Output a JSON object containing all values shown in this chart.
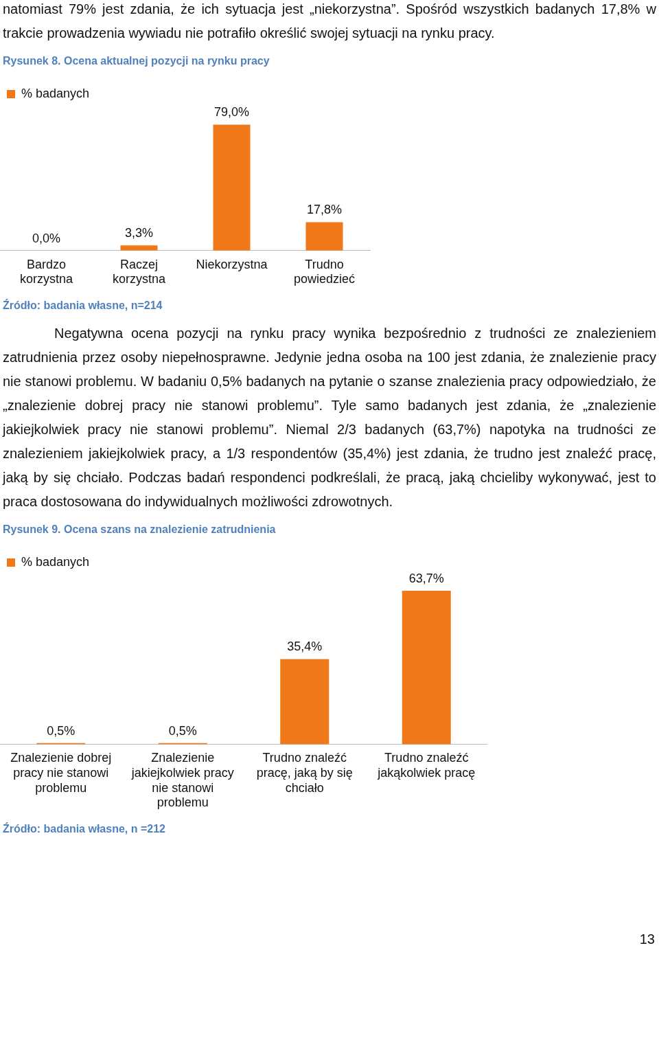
{
  "chart_data": [
    {
      "type": "other",
      "annotations": [
        "natomiast 79% jest zdania, że ich sytuacja jest „niekorzystna”. Spośród wszystkich badanych 17,8% w trakcie prowadzenia wywiadu nie potrafiło określić swojej sytuacji na rynku pracy."
      ]
    },
    {
      "type": "bar",
      "title": "Rysunek 8. Ocena aktualnej pozycji na rynku pracy",
      "categories": [
        "Bardzo korzystna",
        "Raczej korzystna",
        "Niekorzystna",
        "Trudno powiedzieć"
      ],
      "series": [
        {
          "name": "% badanych",
          "color": "#f07818",
          "values": [
            0.0,
            3.3,
            79.0,
            17.8
          ],
          "value_labels": [
            "0,0%",
            "3,3%",
            "79,0%",
            "17,8%"
          ]
        }
      ],
      "legend": "top left",
      "annotations": [
        "Źródło: badania własne, n=214"
      ]
    },
    {
      "type": "other",
      "annotations": [
        "Negatywna ocena pozycji na rynku pracy wynika bezpośrednio z trudności ze znalezieniem zatrudnienia przez osoby niepełnosprawne. Jedynie jedna osoba na 100 jest zdania, że znalezienie pracy nie stanowi problemu. W badaniu 0,5% badanych na pytanie o szanse znalezienia pracy odpowiedziało, że „znalezienie dobrej pracy nie stanowi problemu”. Tyle samo badanych jest zdania, że „znalezienie jakiejkolwiek pracy nie stanowi problemu”. Niemal 2/3 badanych (63,7%) napotyka na trudności ze znalezieniem jakiejkolwiek pracy, a 1/3 respondentów (35,4%) jest zdania, że trudno jest znaleźć pracę, jaką by się chciało. Podczas badań respondenci podkreślali, że pracą, jaką chcieliby wykonywać, jest to praca dostosowana do indywidualnych możliwości zdrowotnych."
      ]
    },
    {
      "type": "bar",
      "title": "Rysunek 9. Ocena szans na znalezienie zatrudnienia",
      "categories": [
        "Znalezienie dobrej pracy nie stanowi problemu",
        "Znalezienie jakiejkolwiek pracy nie stanowi problemu",
        "Trudno znaleźć pracę, jaką by się chciało",
        "Trudno znaleźć jakąkolwiek pracę"
      ],
      "series": [
        {
          "name": "% badanych",
          "color": "#f07818",
          "values": [
            0.5,
            0.5,
            35.4,
            63.7
          ],
          "value_labels": [
            "0,5%",
            "0,5%",
            "35,4%",
            "63,7%"
          ]
        }
      ],
      "legend": "top left",
      "annotations": [
        "Źródło: badania własne, n =212"
      ]
    },
    {
      "type": "other",
      "annotations": [
        "13"
      ]
    }
  ]
}
